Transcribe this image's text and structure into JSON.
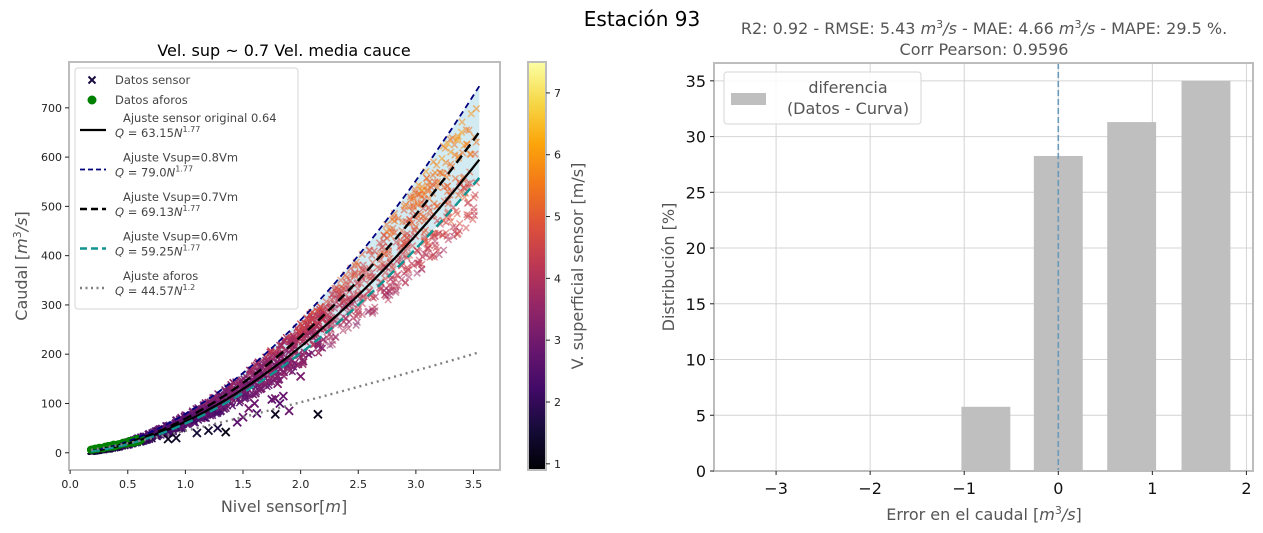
{
  "figure": {
    "suptitle": "Estación 93"
  },
  "chart_data": [
    {
      "type": "scatter",
      "title": "Vel. sup ~ 0.7 Vel. media cauce",
      "xlabel": "Nivel sensor[m]",
      "xlabel_plain": "Nivel sensor[",
      "xlabel_italic": "m",
      "xlabel_end": "]",
      "ylabel": "Caudal [m³/s]",
      "xlim": [
        -0.01,
        3.73
      ],
      "ylim": [
        -35,
        793
      ],
      "xticks": [
        0.0,
        0.5,
        1.0,
        1.5,
        2.0,
        2.5,
        3.0,
        3.5
      ],
      "xtick_labels": [
        "0.0",
        "0.5",
        "1.0",
        "1.5",
        "2.0",
        "2.5",
        "3.0",
        "3.5"
      ],
      "yticks": [
        0,
        100,
        200,
        300,
        400,
        500,
        600,
        700
      ],
      "ytick_labels": [
        "0",
        "100",
        "200",
        "300",
        "400",
        "500",
        "600",
        "700"
      ],
      "grid": false,
      "legend_position": "upper-left",
      "fit_range": [
        0.18,
        3.55
      ],
      "curves": [
        {
          "name": "Ajuste sensor original 0.64",
          "formula_coef": "63.15",
          "formula_exp": "1.77",
          "a": 63.15,
          "b": 1.77,
          "color": "#000000",
          "style": "solid"
        },
        {
          "name": "Ajuste Vsup=0.8Vm",
          "formula_coef": "79.0",
          "formula_exp": "1.77",
          "a": 79.0,
          "b": 1.77,
          "color": "#00007f",
          "style": "dashed-fine"
        },
        {
          "name": "Ajuste Vsup=0.7Vm",
          "formula_coef": "69.13",
          "formula_exp": "1.77",
          "a": 69.13,
          "b": 1.77,
          "color": "#000000",
          "style": "dashed"
        },
        {
          "name": "Ajuste Vsup=0.6Vm",
          "formula_coef": "59.25",
          "formula_exp": "1.77",
          "a": 59.25,
          "b": 1.77,
          "color": "#11938f",
          "style": "dashed"
        },
        {
          "name": "Ajuste aforos",
          "formula_coef": "44.57",
          "formula_exp": "1.2",
          "a": 44.57,
          "b": 1.2,
          "color": "#808080",
          "style": "dotted"
        }
      ],
      "band": {
        "between": [
          "Ajuste Vsup=0.8Vm",
          "Ajuste Vsup=0.6Vm"
        ],
        "color": "#add8e6"
      },
      "series": [
        {
          "name": "Datos sensor",
          "marker": "x",
          "color": "#1a0b40"
        },
        {
          "name": "Datos aforos",
          "marker": "o",
          "color": "#008000"
        }
      ],
      "aforos_x_range": [
        0.18,
        0.62
      ],
      "sensor_outliers": [
        {
          "x": 0.85,
          "y": 28,
          "v": 1.2
        },
        {
          "x": 0.92,
          "y": 30,
          "v": 1.3
        },
        {
          "x": 1.1,
          "y": 40,
          "v": 1.5
        },
        {
          "x": 1.2,
          "y": 45,
          "v": 1.4
        },
        {
          "x": 1.35,
          "y": 42,
          "v": 1.1
        },
        {
          "x": 1.28,
          "y": 50,
          "v": 1.6
        },
        {
          "x": 1.45,
          "y": 62,
          "v": 2.6
        },
        {
          "x": 1.5,
          "y": 72,
          "v": 2.8
        },
        {
          "x": 1.55,
          "y": 90,
          "v": 3.0
        },
        {
          "x": 1.6,
          "y": 100,
          "v": 2.9
        },
        {
          "x": 1.65,
          "y": 130,
          "v": 3.1
        },
        {
          "x": 1.62,
          "y": 80,
          "v": 2.5
        },
        {
          "x": 1.75,
          "y": 108,
          "v": 2.7
        },
        {
          "x": 1.78,
          "y": 110,
          "v": 3.0
        },
        {
          "x": 1.82,
          "y": 100,
          "v": 2.6
        },
        {
          "x": 1.85,
          "y": 115,
          "v": 2.8
        },
        {
          "x": 1.9,
          "y": 85,
          "v": 2.9
        },
        {
          "x": 1.78,
          "y": 78,
          "v": 1.3
        },
        {
          "x": 1.8,
          "y": 140,
          "v": 3.2
        },
        {
          "x": 2.0,
          "y": 155,
          "v": 3.1
        },
        {
          "x": 2.15,
          "y": 78,
          "v": 1.2
        },
        {
          "x": 1.72,
          "y": 145,
          "v": 3.3
        }
      ],
      "colorbar": {
        "label": "V. superficial sensor [m/s]",
        "range": [
          0.9,
          7.5
        ],
        "ticks": [
          1,
          2,
          3,
          4,
          5,
          6,
          7
        ],
        "tick_labels": [
          "1",
          "2",
          "3",
          "4",
          "5",
          "6",
          "7"
        ],
        "colormap": "inferno"
      }
    },
    {
      "type": "bar",
      "title_line1_parts": [
        "R2: 0.92 - RMSE: 5.43 ",
        "m",
        "3",
        "/s",
        " - MAE: 4.66 ",
        "m",
        "3",
        "/s",
        " - MAPE: 29.5 %."
      ],
      "title_line1": "R2: 0.92 - RMSE: 5.43 m³/s - MAE: 4.66 m³/s - MAPE: 29.5 %.",
      "title_line2": "Corr Pearson: 0.9596",
      "xlabel": "Error en el caudal  [m³/s]",
      "xlabel_plain": "Error en el caudal  [",
      "xlabel_italic": "m",
      "xlabel_sup": "3",
      "xlabel_italic2": "/s",
      "xlabel_end": "]",
      "ylabel": "Distribución [%]",
      "xlim": [
        -3.66,
        2.07
      ],
      "ylim": [
        0,
        36.6
      ],
      "xticks": [
        -3,
        -2,
        -1,
        0,
        1,
        2
      ],
      "xtick_labels": [
        "−3",
        "−2",
        "−1",
        "0",
        "1",
        "2"
      ],
      "yticks": [
        0,
        5,
        10,
        15,
        20,
        25,
        30,
        35
      ],
      "ytick_labels": [
        "0",
        "5",
        "10",
        "15",
        "20",
        "25",
        "30",
        "35"
      ],
      "grid": true,
      "legend_position": "upper-left",
      "legend_label_line1": "diferencia",
      "legend_label_line2": "(Datos - Curva)",
      "bar_color": "#bfbfbf",
      "bars": [
        {
          "x0": -1.03,
          "x1": -0.51,
          "value": 5.76
        },
        {
          "x0": -0.26,
          "x1": 0.26,
          "value": 28.26
        },
        {
          "x0": 0.52,
          "x1": 1.04,
          "value": 31.3
        },
        {
          "x0": 1.31,
          "x1": 1.83,
          "value": 35.0
        }
      ],
      "vline": {
        "x": 0,
        "color": "#6a9ab8",
        "style": "dashed"
      }
    }
  ]
}
